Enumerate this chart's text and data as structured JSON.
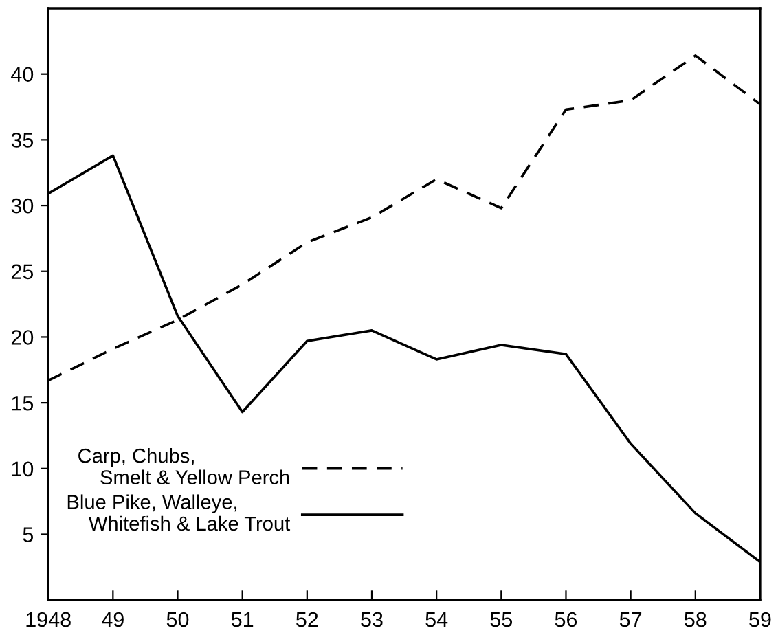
{
  "chart_data": {
    "type": "line",
    "x": [
      1948,
      1949,
      1950,
      1951,
      1952,
      1953,
      1954,
      1955,
      1956,
      1957,
      1958,
      1959
    ],
    "series": [
      {
        "name": "Carp, Chubs,\n    Smelt & Yellow Perch",
        "color": "#000000",
        "line_style": "dashed",
        "values": [
          16.7,
          19.1,
          21.3,
          24.0,
          27.2,
          29.1,
          32.0,
          29.8,
          37.3,
          38.0,
          41.4,
          37.7
        ]
      },
      {
        "name": "Blue Pike, Walleye,\n    Whitefish & Lake Trout",
        "color": "#000000",
        "line_style": "solid",
        "values": [
          30.9,
          33.8,
          21.6,
          14.3,
          19.7,
          20.5,
          18.3,
          19.4,
          18.7,
          11.9,
          6.6,
          2.9
        ]
      }
    ],
    "xlim": [
      1948,
      1959
    ],
    "xticks": [
      {
        "value": 1948,
        "label": "1948"
      },
      {
        "value": 1949,
        "label": "49"
      },
      {
        "value": 1950,
        "label": "50"
      },
      {
        "value": 1951,
        "label": "51"
      },
      {
        "value": 1952,
        "label": "52"
      },
      {
        "value": 1953,
        "label": "53"
      },
      {
        "value": 1954,
        "label": "54"
      },
      {
        "value": 1955,
        "label": "55"
      },
      {
        "value": 1956,
        "label": "56"
      },
      {
        "value": 1957,
        "label": "57"
      },
      {
        "value": 1958,
        "label": "58"
      },
      {
        "value": 1959,
        "label": "59"
      }
    ],
    "ylim": [
      0,
      45
    ],
    "yticks": [
      5,
      10,
      15,
      20,
      25,
      30,
      35,
      40
    ],
    "grid": false,
    "legend": "bottom left",
    "marker": "none"
  }
}
